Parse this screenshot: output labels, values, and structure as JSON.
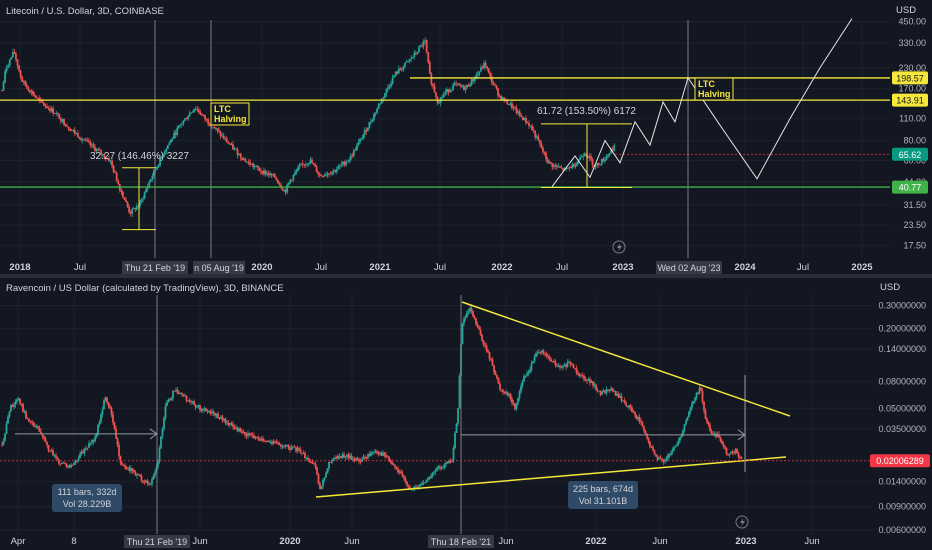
{
  "colors": {
    "background": "#131722",
    "grid": "#1e222d",
    "text": "#b2b5be",
    "title_text": "#d1d4dc",
    "up": "#26a69a",
    "down": "#ef5350",
    "level_line": "#f5e83a",
    "support_line": "#3fb24a",
    "price_tag_red": "#f23645",
    "price_tag_green": "#089981",
    "projection": "#e6e6e6",
    "label_bg": "#2a2e39",
    "measure_bg": "#2962ff"
  },
  "top_panel": {
    "title": "Litecoin / U.S. Dollar, 3D, COINBASE",
    "axis_unit": "USD",
    "y_ticks": [
      "450.00",
      "330.00",
      "230.00",
      "170.00",
      "110.00",
      "80.00",
      "60.00",
      "44.00",
      "31.50",
      "23.50",
      "17.50"
    ],
    "x_ticks": [
      "2018",
      "Jul",
      "2020",
      "Jul",
      "2021",
      "Jul",
      "2022",
      "Jul",
      "2023",
      "2024",
      "Jul",
      "2025"
    ],
    "x_highlight_1": "Thu 21 Feb '19",
    "x_highlight_2": "n 05 Aug '19",
    "x_highlight_3": "Wed 02 Aug '23",
    "price_tags": [
      "198.57",
      "143.91",
      "65.62",
      "40.77"
    ],
    "halving_label_1": "LTC\nHalving",
    "halving_label_2": "LTC\nHalving",
    "measure_1": "32.27 (146.46%) 3227",
    "measure_2": "61.72 (153.50%) 6172"
  },
  "bottom_panel": {
    "title": "Ravencoin / US Dollar (calculated by TradingView), 3D, BINANCE",
    "axis_unit": "USD",
    "y_ticks": [
      "0.30000000",
      "0.20000000",
      "0.14000000",
      "0.08000000",
      "0.05000000",
      "0.03500000",
      "0.01400000",
      "0.00900000",
      "0.00600000"
    ],
    "x_ticks": [
      "Apr",
      "8",
      "Jun",
      "2020",
      "Jun",
      "Jun",
      "2022",
      "Jun",
      "2023",
      "Jun"
    ],
    "x_highlight_1": "Thu 21 Feb '19",
    "x_highlight_2": "Thu 18 Feb '21",
    "price_tag": "0.02006289",
    "range_1": {
      "line1": "111 bars, 332d",
      "line2": "Vol 28.229B"
    },
    "range_2": {
      "line1": "225 bars, 674d",
      "line2": "Vol 31.101B"
    }
  },
  "chart_data": [
    {
      "type": "candlestick",
      "title": "Litecoin / U.S. Dollar, 3D, COINBASE",
      "ylabel": "USD",
      "y_scale": "log",
      "ylim": [
        15,
        460
      ],
      "horizontal_levels": [
        198.57,
        143.91,
        65.62,
        40.77
      ],
      "annotations": [
        "LTC Halving (Aug 2019)",
        "LTC Halving (Aug 2023)",
        "32.27 (146.46%) 3227",
        "61.72 (153.50%) 6172"
      ],
      "series": [
        {
          "name": "LTCUSD",
          "x": [
            "2018-01",
            "2018-04",
            "2018-07",
            "2018-10",
            "2019-01",
            "2019-04",
            "2019-06",
            "2019-08",
            "2019-11",
            "2020-03",
            "2020-07",
            "2020-11",
            "2021-01",
            "2021-05",
            "2021-07",
            "2021-11",
            "2022-01",
            "2022-05",
            "2022-07",
            "2022-10",
            "2022-12"
          ],
          "values": [
            230,
            150,
            85,
            55,
            32,
            80,
            135,
            95,
            50,
            38,
            47,
            70,
            140,
            330,
            130,
            250,
            140,
            65,
            55,
            60,
            74
          ]
        }
      ]
    },
    {
      "type": "candlestick",
      "title": "Ravencoin / US Dollar (calculated by TradingView), 3D, BINANCE",
      "ylabel": "USD",
      "y_scale": "log",
      "ylim": [
        0.005,
        0.4
      ],
      "horizontal_levels": [
        0.02006289
      ],
      "annotations": [
        "111 bars, 332d / Vol 28.229B",
        "225 bars, 674d / Vol 31.101B"
      ],
      "series": [
        {
          "name": "RVNUSD",
          "x": [
            "2018-04",
            "2018-07",
            "2018-10",
            "2019-01",
            "2019-03",
            "2019-06",
            "2019-10",
            "2020-01",
            "2020-06",
            "2020-10",
            "2021-01",
            "2021-02",
            "2021-05",
            "2021-08",
            "2021-11",
            "2022-03",
            "2022-06",
            "2022-08",
            "2022-10",
            "2022-12"
          ],
          "values": [
            0.05,
            0.03,
            0.055,
            0.015,
            0.07,
            0.06,
            0.035,
            0.022,
            0.018,
            0.012,
            0.02,
            0.3,
            0.07,
            0.12,
            0.11,
            0.05,
            0.02,
            0.075,
            0.03,
            0.02
          ]
        }
      ]
    }
  ]
}
